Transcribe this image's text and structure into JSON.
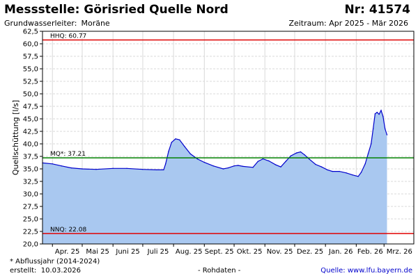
{
  "header": {
    "title": "Messstelle: Görisried Quelle Nord",
    "number": "Nr: 41574",
    "aquifer_label": "Grundwasserleiter:",
    "aquifer_value": "Moräne",
    "period": "Zeitraum: Apr 2025 - Mär 2026"
  },
  "footer": {
    "note": "* Abflussjahr (2014-2024)",
    "created_label": "erstellt:",
    "created_date": "10.03.2026",
    "data_status": "- Rohdaten -",
    "source_label": "Quelle:",
    "source_link": "www.lfu.bayern.de"
  },
  "colors": {
    "fill": "#a9c8f0",
    "line": "#0000cc",
    "hhq": "#e00000",
    "nnq": "#e00000",
    "mq": "#008000",
    "grid": "#d9d9d9"
  },
  "chart_data": {
    "type": "area",
    "ylabel": "Quellschüttung [l/s]",
    "xlabel": "",
    "ylim": [
      20.0,
      62.5
    ],
    "y_ticks": [
      "20,0",
      "22,5",
      "25,0",
      "27,5",
      "30,0",
      "32,5",
      "35,0",
      "37,5",
      "40,0",
      "42,5",
      "45,0",
      "47,5",
      "50,0",
      "52,5",
      "55,0",
      "57,5",
      "60,0",
      "62,5"
    ],
    "x_axis_range": [
      "2025-03-22",
      "2026-03-31"
    ],
    "x_ticks": [
      {
        "label": "Apr. 25",
        "date": "2025-04-01"
      },
      {
        "label": "Mai 25",
        "date": "2025-05-01"
      },
      {
        "label": "Juni 25",
        "date": "2025-06-01"
      },
      {
        "label": "Juli 25",
        "date": "2025-07-01"
      },
      {
        "label": "Aug. 25",
        "date": "2025-08-01"
      },
      {
        "label": "Sept. 25",
        "date": "2025-09-01"
      },
      {
        "label": "Okt. 25",
        "date": "2025-10-01"
      },
      {
        "label": "Nov. 25",
        "date": "2025-11-01"
      },
      {
        "label": "Dez. 25",
        "date": "2025-12-01"
      },
      {
        "label": "Jan. 26",
        "date": "2026-01-01"
      },
      {
        "label": "Feb. 26",
        "date": "2026-02-01"
      },
      {
        "label": "Mrz. 26",
        "date": "2026-03-01"
      }
    ],
    "reference_lines": [
      {
        "label": "HHQ: 60.77",
        "value": 60.77,
        "color": "#e00000"
      },
      {
        "label": "MQ*: 37.21",
        "value": 37.21,
        "color": "#008000"
      },
      {
        "label": "NNQ: 22.08",
        "value": 22.08,
        "color": "#e00000"
      }
    ],
    "grid": true,
    "series": [
      {
        "points": [
          [
            "2025-03-22",
            36.2
          ],
          [
            "2025-04-01",
            36.0
          ],
          [
            "2025-04-10",
            35.6
          ],
          [
            "2025-04-20",
            35.2
          ],
          [
            "2025-05-01",
            35.0
          ],
          [
            "2025-05-15",
            34.9
          ],
          [
            "2025-06-01",
            35.1
          ],
          [
            "2025-06-15",
            35.1
          ],
          [
            "2025-07-01",
            34.9
          ],
          [
            "2025-07-15",
            34.8
          ],
          [
            "2025-07-22",
            34.8
          ],
          [
            "2025-07-24",
            36.0
          ],
          [
            "2025-07-27",
            38.5
          ],
          [
            "2025-07-30",
            40.3
          ],
          [
            "2025-08-03",
            41.0
          ],
          [
            "2025-08-07",
            40.8
          ],
          [
            "2025-08-12",
            39.5
          ],
          [
            "2025-08-18",
            38.0
          ],
          [
            "2025-08-25",
            37.0
          ],
          [
            "2025-09-01",
            36.3
          ],
          [
            "2025-09-10",
            35.6
          ],
          [
            "2025-09-20",
            35.0
          ],
          [
            "2025-09-25",
            35.2
          ],
          [
            "2025-10-01",
            35.6
          ],
          [
            "2025-10-05",
            35.7
          ],
          [
            "2025-10-10",
            35.5
          ],
          [
            "2025-10-20",
            35.3
          ],
          [
            "2025-10-25",
            36.5
          ],
          [
            "2025-10-30",
            37.0
          ],
          [
            "2025-11-05",
            36.6
          ],
          [
            "2025-11-12",
            35.8
          ],
          [
            "2025-11-17",
            35.4
          ],
          [
            "2025-11-22",
            36.5
          ],
          [
            "2025-11-27",
            37.6
          ],
          [
            "2025-12-03",
            38.2
          ],
          [
            "2025-12-07",
            38.4
          ],
          [
            "2025-12-11",
            37.8
          ],
          [
            "2025-12-16",
            36.9
          ],
          [
            "2025-12-22",
            35.9
          ],
          [
            "2025-12-28",
            35.4
          ],
          [
            "2026-01-03",
            34.8
          ],
          [
            "2026-01-08",
            34.5
          ],
          [
            "2026-01-15",
            34.5
          ],
          [
            "2026-01-22",
            34.2
          ],
          [
            "2026-01-28",
            33.8
          ],
          [
            "2026-02-03",
            33.5
          ],
          [
            "2026-02-06",
            34.3
          ],
          [
            "2026-02-10",
            36.0
          ],
          [
            "2026-02-13",
            38.0
          ],
          [
            "2026-02-16",
            40.0
          ],
          [
            "2026-02-18",
            43.0
          ],
          [
            "2026-02-20",
            46.0
          ],
          [
            "2026-02-22",
            46.3
          ],
          [
            "2026-02-24",
            45.9
          ],
          [
            "2026-02-26",
            46.7
          ],
          [
            "2026-02-28",
            45.5
          ],
          [
            "2026-03-02",
            43.0
          ],
          [
            "2026-03-04",
            41.8
          ]
        ]
      }
    ]
  }
}
